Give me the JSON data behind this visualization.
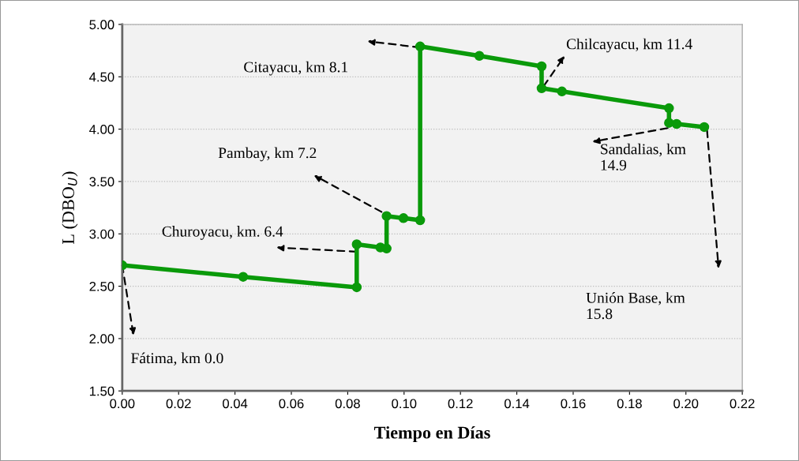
{
  "chart_data": {
    "type": "line",
    "xlabel": "Tiempo en Días",
    "ylabel": "L (DBO$_{U}$)",
    "series": [
      {
        "color": "#0a9a0a",
        "x": [
          0,
          0.0429,
          0.0832,
          0.0832,
          0.0916,
          0.0938,
          0.0938,
          0.0998,
          0.1057,
          0.1057,
          0.1267,
          0.1488,
          0.1488,
          0.156,
          0.194,
          0.194,
          0.1967,
          0.2065
        ],
        "values": [
          2.7,
          2.59,
          2.49,
          2.9,
          2.87,
          2.86,
          3.17,
          3.15,
          3.13,
          4.79,
          4.7,
          4.6,
          4.39,
          4.36,
          4.2,
          4.06,
          4.05,
          4.02
        ]
      }
    ],
    "marker": "circle",
    "line_style": "solid",
    "xlim": [
      0,
      0.22
    ],
    "ylim": [
      1.5,
      5.0
    ],
    "xticks": [
      {
        "value": 0,
        "label": "0.00"
      },
      {
        "value": 0.02,
        "label": "0.02"
      },
      {
        "value": 0.04,
        "label": "0.04"
      },
      {
        "value": 0.06,
        "label": "0.06"
      },
      {
        "value": 0.08,
        "label": "0.08"
      },
      {
        "value": 0.1,
        "label": "0.10"
      },
      {
        "value": 0.12,
        "label": "0.12"
      },
      {
        "value": 0.14,
        "label": "0.14"
      },
      {
        "value": 0.16,
        "label": "0.16"
      },
      {
        "value": 0.18,
        "label": "0.18"
      },
      {
        "value": 0.2,
        "label": "0.20"
      },
      {
        "value": 0.22,
        "label": "0.22"
      }
    ],
    "yticks": [
      {
        "value": 1.5,
        "label": "1.50"
      },
      {
        "value": 2.0,
        "label": "2.00"
      },
      {
        "value": 2.5,
        "label": "2.50"
      },
      {
        "value": 3.0,
        "label": "3.00"
      },
      {
        "value": 3.5,
        "label": "3.50"
      },
      {
        "value": 4.0,
        "label": "4.00"
      },
      {
        "value": 4.5,
        "label": "4.50"
      },
      {
        "value": 5.0,
        "label": "5.00"
      }
    ],
    "grid": "y",
    "annotations": [
      {
        "text": "Fátima, km 0.0",
        "x": 0,
        "y": 2.7
      },
      {
        "text": "Churoyacu, km. 6.4",
        "x": 0.0832,
        "y": 2.83
      },
      {
        "text": "Pambay, km 7.2",
        "x": 0.092,
        "y": 3.21
      },
      "Citayacu, km 8.1",
      {
        "text": "Chilcayacu, km 11.4",
        "x": 0.1495,
        "y": 4.41
      },
      {
        "text": "Sandalias, km\n14.9",
        "x": 0.1935,
        "y": 4.01
      },
      "Unión Base, km\n15.8"
    ]
  }
}
